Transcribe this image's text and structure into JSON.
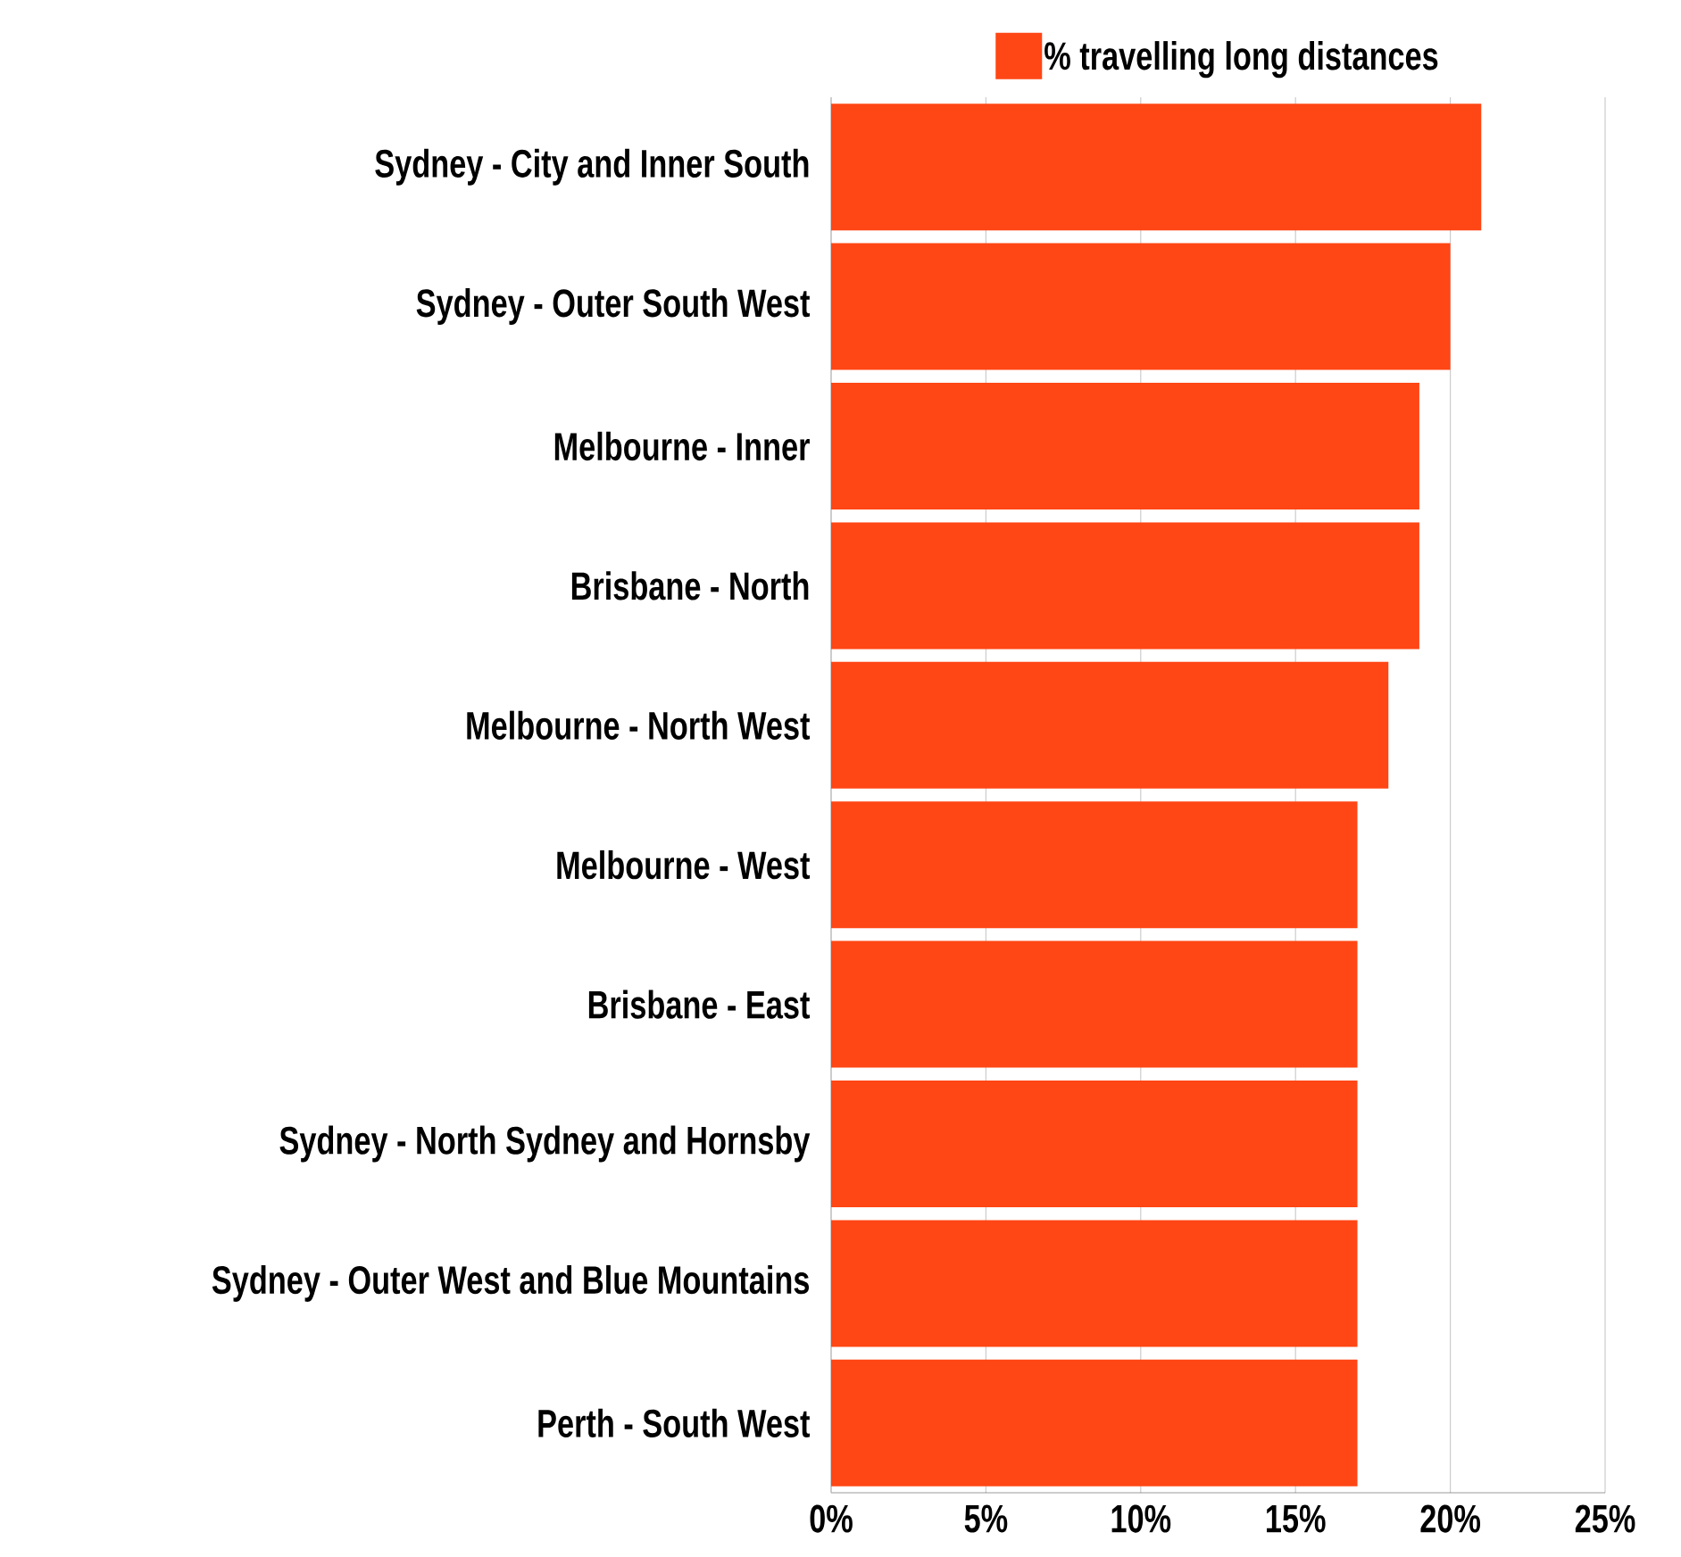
{
  "chart_data": {
    "type": "bar",
    "orientation": "horizontal",
    "categories": [
      "Sydney - City and Inner South",
      "Sydney - Outer South West",
      "Melbourne - Inner",
      "Brisbane - North",
      "Melbourne - North West",
      "Melbourne - West",
      "Brisbane - East",
      "Sydney - North Sydney and Hornsby",
      "Sydney - Outer West and Blue Mountains",
      "Perth - South West"
    ],
    "series": [
      {
        "name": "% travelling long distances",
        "color": "#ff4615",
        "values": [
          21,
          20,
          19,
          19,
          18,
          17,
          17,
          17,
          17,
          17
        ]
      }
    ],
    "xlim": [
      0,
      25
    ],
    "xticks": [
      {
        "value": 0,
        "label": "0%"
      },
      {
        "value": 5,
        "label": "5%"
      },
      {
        "value": 10,
        "label": "10%"
      },
      {
        "value": 15,
        "label": "15%"
      },
      {
        "value": 20,
        "label": "20%"
      },
      {
        "value": 25,
        "label": "25%"
      }
    ],
    "grid": "x",
    "legend": "top"
  }
}
